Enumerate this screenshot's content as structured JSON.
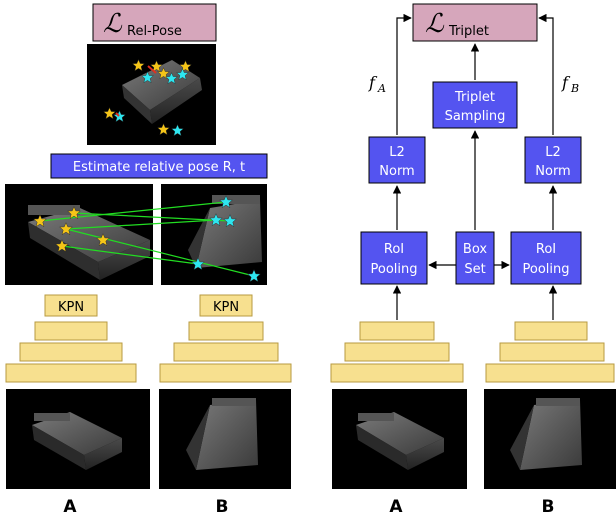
{
  "left": {
    "loss_symbol": "ℒ",
    "loss_sub": "Rel-Pose",
    "estimate_label": "Estimate relative pose R, t",
    "kpn_a": "KPN",
    "kpn_b": "KPN",
    "label_a": "A",
    "label_b": "B"
  },
  "right": {
    "loss_symbol": "ℒ",
    "loss_sub": "Triplet",
    "triplet_line1": "Triplet",
    "triplet_line2": "Sampling",
    "l2_line1": "L2",
    "l2_line2": "Norm",
    "roi_line1": "RoI",
    "roi_line2": "Pooling",
    "box_line1": "Box",
    "box_line2": "Set",
    "fa_main": "f",
    "fa_sub": "A",
    "fb_main": "f",
    "fb_sub": "B",
    "label_a": "A",
    "label_b": "B"
  },
  "colors": {
    "loss_fill": "#d6a6bb",
    "block_fill": "#5454f0",
    "block_text": "#ffffff",
    "kpn_fill": "#f7e08f",
    "kpn_stroke": "#b79a40",
    "match_line": "#22dd22",
    "star_yellow": "#f5c518",
    "star_cyan": "#2ee6f0",
    "star_red": "#e03020"
  }
}
